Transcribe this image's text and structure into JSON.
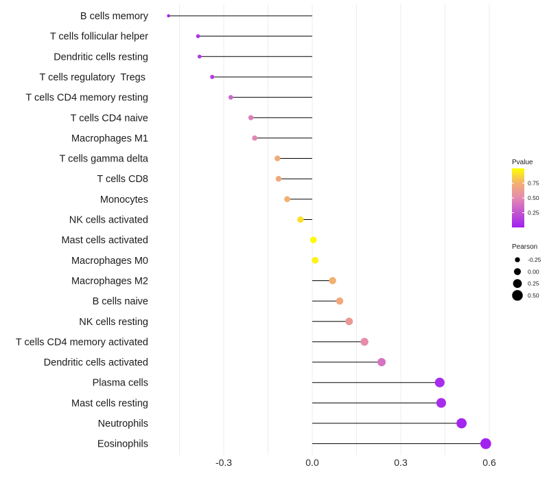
{
  "chart_data": {
    "type": "lollipop",
    "title": "",
    "xlabel": "",
    "ylabel": "",
    "xlim": [
      -0.45,
      0.64
    ],
    "xticks": [
      -0.3,
      0.0,
      0.3,
      0.6
    ],
    "xtick_labels": [
      "-0.3",
      "0.0",
      "0.3",
      "0.6"
    ],
    "grid": true,
    "categories": [
      "B cells memory",
      "T cells follicular helper",
      "Dendritic cells resting",
      "T cells regulatory  Tregs ",
      "T cells CD4 memory resting",
      "T cells CD4 naive",
      "Macrophages M1",
      "T cells gamma delta",
      "T cells CD8",
      "Monocytes",
      "NK cells activated",
      "Mast cells activated",
      "Macrophages M0",
      "Macrophages M2",
      "B cells naive",
      "NK cells resting",
      "T cells CD4 memory activated",
      "Dendritic cells activated",
      "Plasma cells",
      "Mast cells resting",
      "Neutrophils",
      "Eosinophils"
    ],
    "pearson": [
      -0.487,
      -0.387,
      -0.382,
      -0.339,
      -0.276,
      -0.208,
      -0.195,
      -0.118,
      -0.114,
      -0.085,
      -0.04,
      0.004,
      0.01,
      0.069,
      0.093,
      0.125,
      0.177,
      0.235,
      0.432,
      0.437,
      0.506,
      0.588
    ],
    "pvalue": [
      0.02,
      0.08,
      0.12,
      0.15,
      0.35,
      0.45,
      0.48,
      0.72,
      0.7,
      0.75,
      0.9,
      0.98,
      0.96,
      0.75,
      0.7,
      0.6,
      0.52,
      0.4,
      0.06,
      0.07,
      0.03,
      0.01
    ],
    "legend_pvalue": {
      "title": "Pvalue",
      "ticks": [
        0.25,
        0.5,
        0.75
      ],
      "tick_labels": [
        "0.25",
        "0.50",
        "0.75"
      ],
      "range": [
        0.0,
        1.0
      ],
      "colors": [
        "#a020f0",
        "#f0b070",
        "#ffff00"
      ],
      "placement": "right"
    },
    "legend_pearson": {
      "title": "Pearson",
      "values": [
        -0.25,
        0.0,
        0.25,
        0.5
      ],
      "labels": [
        "-0.25",
        "0.00",
        "0.25",
        "0.50"
      ],
      "placement": "right"
    }
  }
}
